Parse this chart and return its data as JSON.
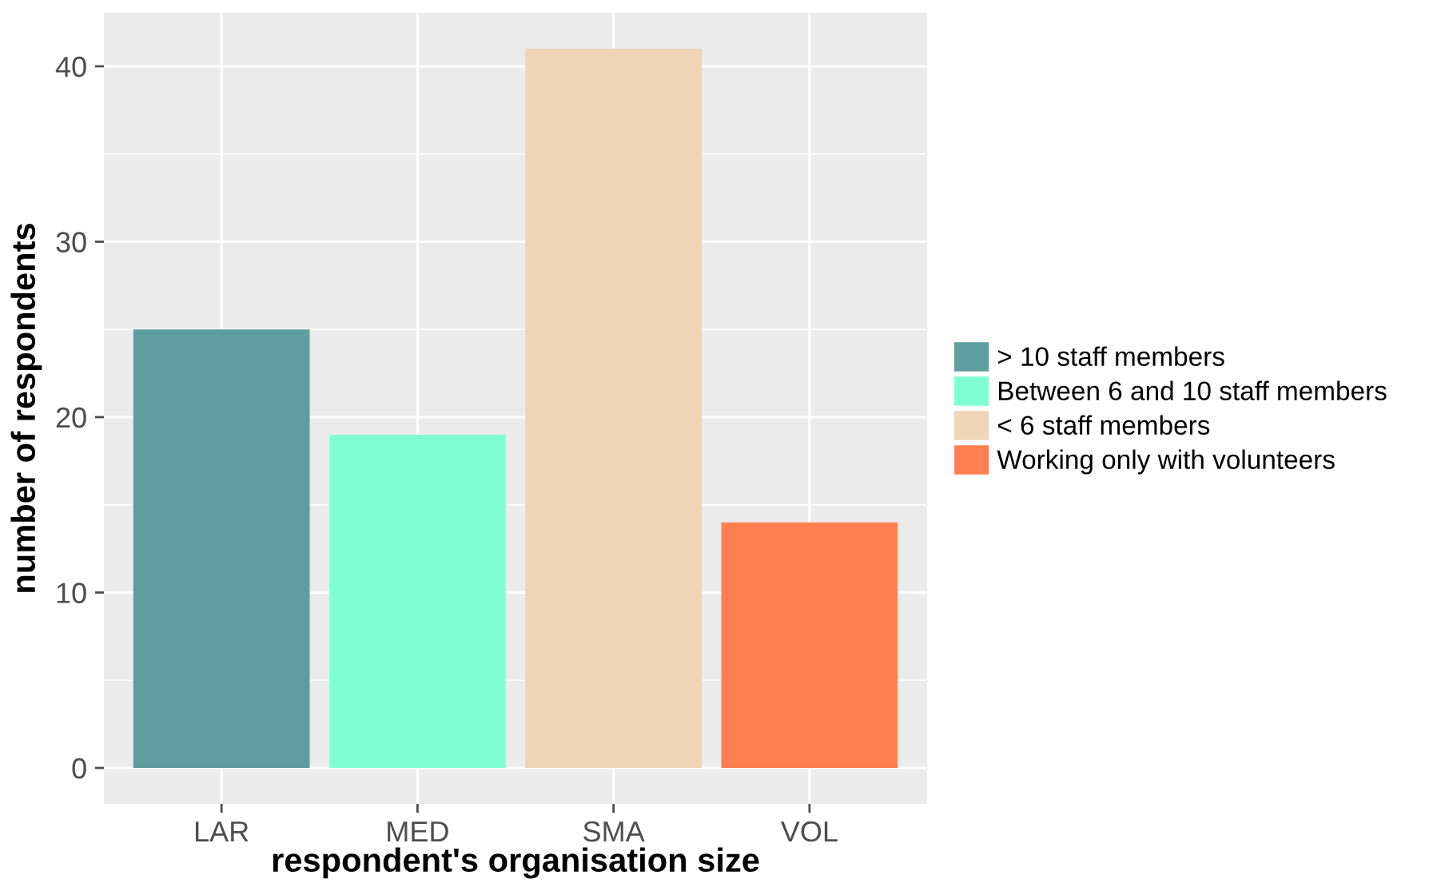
{
  "chart_data": {
    "type": "bar",
    "xlabel": "respondent's organisation size",
    "ylabel": "number of respondents",
    "categories": [
      "LAR",
      "MED",
      "SMA",
      "VOL"
    ],
    "series": [
      {
        "name": "> 10 staff members",
        "color": "#5f9ea0",
        "values": [
          25,
          null,
          null,
          null
        ]
      },
      {
        "name": "Between 6 and 10 staff members",
        "color": "#7fffd4",
        "values": [
          null,
          19,
          null,
          null
        ]
      },
      {
        "name": "< 6 staff members",
        "color": "#eed5b7",
        "values": [
          null,
          null,
          41,
          null
        ]
      },
      {
        "name": "Working only with volunteers",
        "color": "#ff7f50",
        "values": [
          null,
          null,
          null,
          14
        ]
      }
    ],
    "ylim": [
      -2.05,
      43.05
    ],
    "yticks": [
      0,
      10,
      20,
      30,
      40
    ],
    "grid": true,
    "legend": "right"
  }
}
